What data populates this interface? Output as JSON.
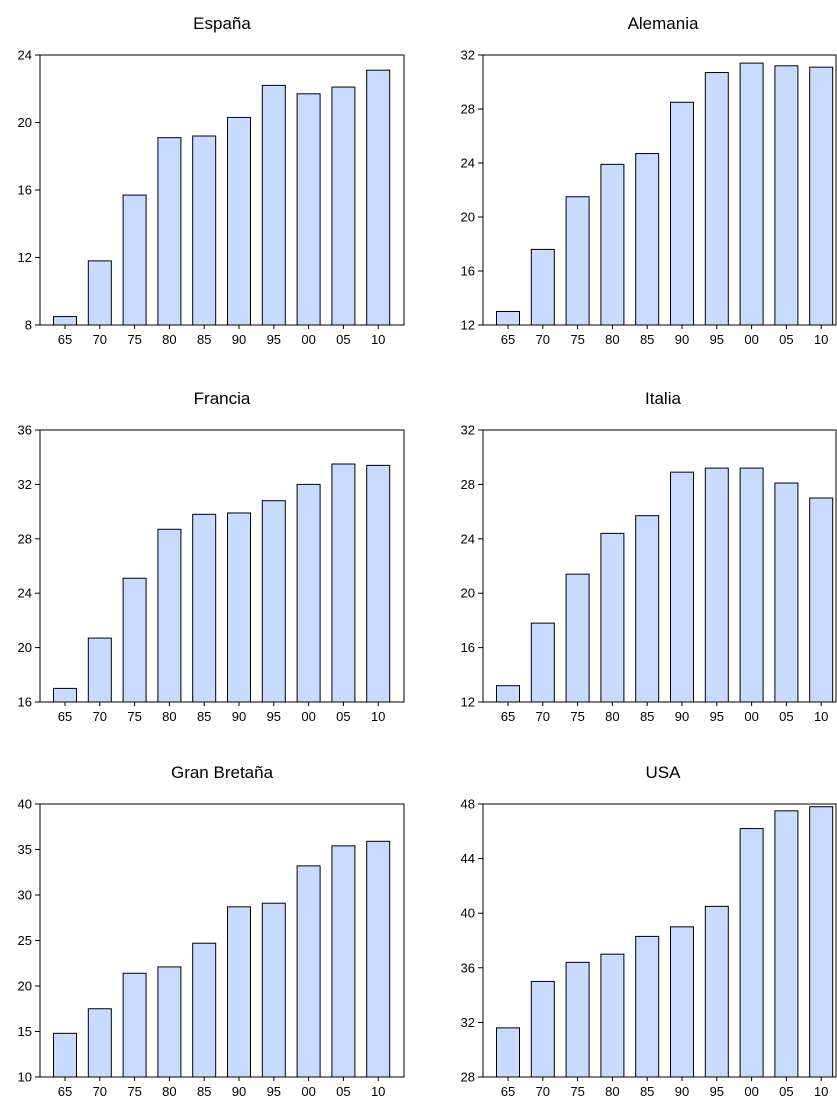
{
  "chart_data": [
    {
      "type": "bar",
      "title": "España",
      "categories": [
        "65",
        "70",
        "75",
        "80",
        "85",
        "90",
        "95",
        "00",
        "05",
        "10"
      ],
      "values": [
        8.5,
        11.8,
        15.7,
        19.1,
        19.2,
        20.3,
        22.2,
        21.7,
        22.1,
        23.1
      ],
      "ylim": [
        8,
        24
      ],
      "yticks": [
        8,
        12,
        16,
        20,
        24
      ]
    },
    {
      "type": "bar",
      "title": "Alemania",
      "categories": [
        "65",
        "70",
        "75",
        "80",
        "85",
        "90",
        "95",
        "00",
        "05",
        "10"
      ],
      "values": [
        13.0,
        17.6,
        21.5,
        23.9,
        24.7,
        28.5,
        30.7,
        31.4,
        31.2,
        31.1
      ],
      "ylim": [
        12,
        32
      ],
      "yticks": [
        12,
        16,
        20,
        24,
        28,
        32
      ]
    },
    {
      "type": "bar",
      "title": "Francia",
      "categories": [
        "65",
        "70",
        "75",
        "80",
        "85",
        "90",
        "95",
        "00",
        "05",
        "10"
      ],
      "values": [
        17.0,
        20.7,
        25.1,
        28.7,
        29.8,
        29.9,
        30.8,
        32.0,
        33.5,
        33.4
      ],
      "ylim": [
        16,
        36
      ],
      "yticks": [
        16,
        20,
        24,
        28,
        32,
        36
      ]
    },
    {
      "type": "bar",
      "title": "Italia",
      "categories": [
        "65",
        "70",
        "75",
        "80",
        "85",
        "90",
        "95",
        "00",
        "05",
        "10"
      ],
      "values": [
        13.2,
        17.8,
        21.4,
        24.4,
        25.7,
        28.9,
        29.2,
        29.2,
        28.1,
        27.0
      ],
      "ylim": [
        12,
        32
      ],
      "yticks": [
        12,
        16,
        20,
        24,
        28,
        32
      ]
    },
    {
      "type": "bar",
      "title": "Gran Bretaña",
      "categories": [
        "65",
        "70",
        "75",
        "80",
        "85",
        "90",
        "95",
        "00",
        "05",
        "10"
      ],
      "values": [
        14.8,
        17.5,
        21.4,
        22.1,
        24.7,
        28.7,
        29.1,
        33.2,
        35.4,
        35.9
      ],
      "ylim": [
        10,
        40
      ],
      "yticks": [
        10,
        15,
        20,
        25,
        30,
        35,
        40
      ]
    },
    {
      "type": "bar",
      "title": "USA",
      "categories": [
        "65",
        "70",
        "75",
        "80",
        "85",
        "90",
        "95",
        "00",
        "05",
        "10"
      ],
      "values": [
        31.6,
        35.0,
        36.4,
        37.0,
        38.3,
        39.0,
        40.5,
        46.2,
        47.5,
        47.8
      ],
      "ylim": [
        28,
        48
      ],
      "yticks": [
        28,
        32,
        36,
        40,
        44,
        48
      ]
    }
  ]
}
